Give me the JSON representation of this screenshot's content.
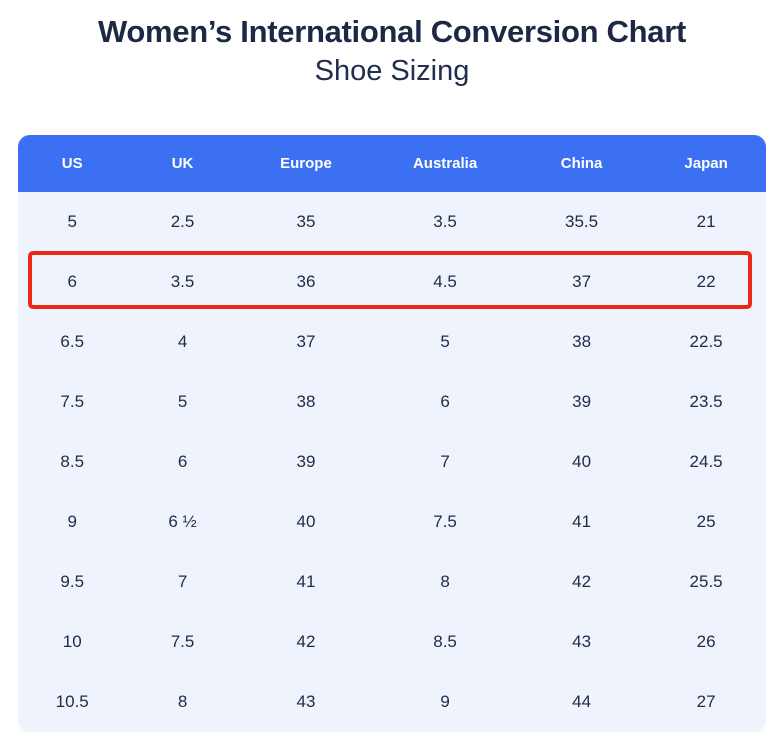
{
  "chart_data": {
    "type": "table",
    "title": "Women’s International Conversion Chart",
    "subtitle": "Shoe Sizing",
    "columns": [
      "US",
      "UK",
      "Europe",
      "Australia",
      "China",
      "Japan"
    ],
    "rows": [
      [
        "5",
        "2.5",
        "35",
        "3.5",
        "35.5",
        "21"
      ],
      [
        "6",
        "3.5",
        "36",
        "4.5",
        "37",
        "22"
      ],
      [
        "6.5",
        "4",
        "37",
        "5",
        "38",
        "22.5"
      ],
      [
        "7.5",
        "5",
        "38",
        "6",
        "39",
        "23.5"
      ],
      [
        "8.5",
        "6",
        "39",
        "7",
        "40",
        "24.5"
      ],
      [
        "9",
        "6 ½",
        "40",
        "7.5",
        "41",
        "25"
      ],
      [
        "9.5",
        "7",
        "41",
        "8",
        "42",
        "25.5"
      ],
      [
        "10",
        "7.5",
        "42",
        "8.5",
        "43",
        "26"
      ],
      [
        "10.5",
        "8",
        "43",
        "9",
        "44",
        "27"
      ]
    ],
    "highlighted_row_index": 1,
    "layout": {
      "header_position": "top",
      "grid": "off",
      "note": "row with US size 6 outlined in red"
    }
  },
  "colors": {
    "header_bg": "#3b70f2",
    "header_text": "#ffffff",
    "table_bg": "#eff3fb",
    "title_text": "#1c2844",
    "cell_text": "#1f2b49",
    "highlight_border": "#ee2617",
    "page_bg": "#ffffff"
  }
}
